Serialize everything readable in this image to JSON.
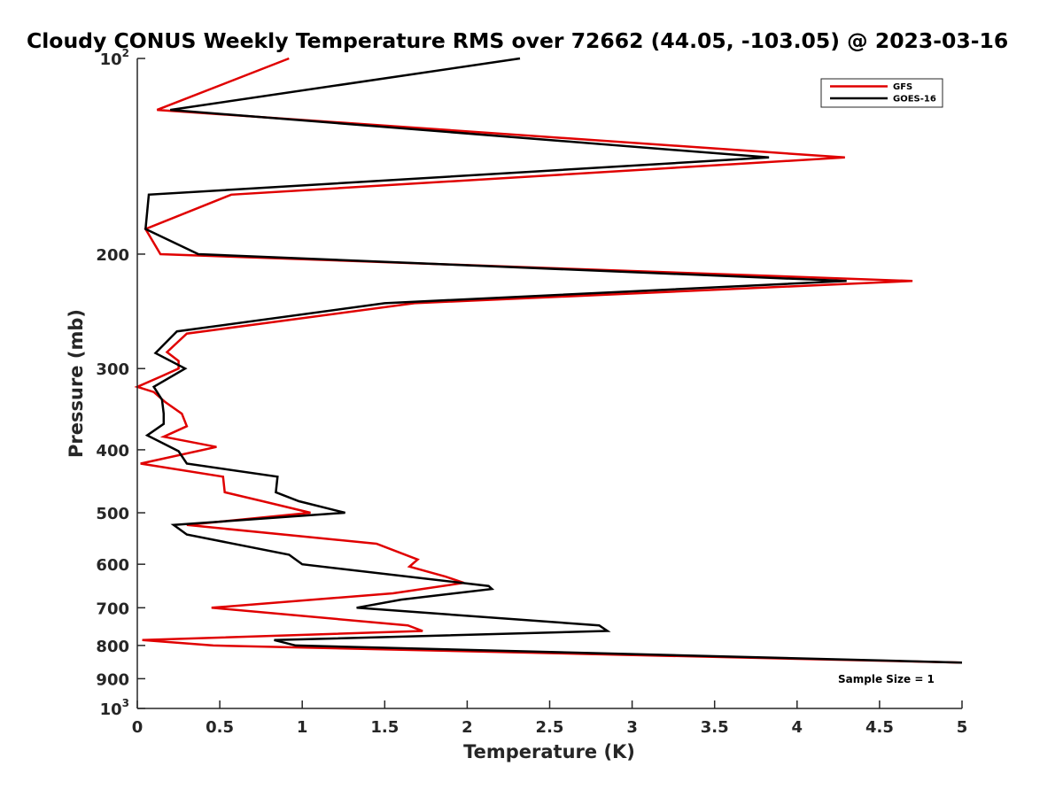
{
  "chart_data": {
    "type": "line",
    "title": "Cloudy CONUS Weekly Temperature RMS over 72662 (44.05, -103.05) @ 2023-03-16",
    "xlabel": "Temperature (K)",
    "ylabel": "Pressure (mb)",
    "xlim": [
      0,
      5
    ],
    "ylim": [
      100,
      1000
    ],
    "yscale": "log",
    "y_reversed": true,
    "grid": false,
    "legend_position": "top-right",
    "x_ticks": [
      0,
      0.5,
      1,
      1.5,
      2,
      2.5,
      3,
      3.5,
      4,
      4.5,
      5
    ],
    "x_tick_labels": [
      "0",
      "0.5",
      "1",
      "1.5",
      "2",
      "2.5",
      "3",
      "3.5",
      "4",
      "4.5",
      "5"
    ],
    "y_ticks": [
      100,
      200,
      300,
      400,
      500,
      600,
      700,
      800,
      900,
      1000
    ],
    "y_tick_labels": [
      {
        "base": "10",
        "sup": "2"
      },
      {
        "base": "200",
        "sup": ""
      },
      {
        "base": "300",
        "sup": ""
      },
      {
        "base": "400",
        "sup": ""
      },
      {
        "base": "500",
        "sup": ""
      },
      {
        "base": "600",
        "sup": ""
      },
      {
        "base": "700",
        "sup": ""
      },
      {
        "base": "800",
        "sup": ""
      },
      {
        "base": "900",
        "sup": ""
      },
      {
        "base": "10",
        "sup": "3"
      }
    ],
    "annotation": "Sample Size = 1",
    "series": [
      {
        "name": "GFS",
        "color": "#e00000",
        "points": [
          [
            0.92,
            100
          ],
          [
            0.12,
            120
          ],
          [
            4.29,
            142
          ],
          [
            0.57,
            162
          ],
          [
            0.05,
            183
          ],
          [
            0.14,
            200
          ],
          [
            4.7,
            220
          ],
          [
            1.68,
            238
          ],
          [
            0.3,
            265
          ],
          [
            0.18,
            283
          ],
          [
            0.25,
            292
          ],
          [
            0.25,
            300
          ],
          [
            0.15,
            308
          ],
          [
            0.0,
            320
          ],
          [
            0.1,
            326
          ],
          [
            0.17,
            338
          ],
          [
            0.27,
            352
          ],
          [
            0.3,
            368
          ],
          [
            0.16,
            382
          ],
          [
            0.48,
            396
          ],
          [
            0.02,
            420
          ],
          [
            0.52,
            440
          ],
          [
            0.53,
            465
          ],
          [
            0.76,
            480
          ],
          [
            1.05,
            500
          ],
          [
            0.3,
            522
          ],
          [
            1.45,
            558
          ],
          [
            1.7,
            590
          ],
          [
            1.65,
            605
          ],
          [
            1.87,
            627
          ],
          [
            1.98,
            641
          ],
          [
            1.55,
            665
          ],
          [
            0.45,
            700
          ],
          [
            1.64,
            745
          ],
          [
            1.73,
            760
          ],
          [
            0.03,
            785
          ],
          [
            0.46,
            800
          ],
          [
            5.0,
            850
          ]
        ]
      },
      {
        "name": "GOES-16",
        "color": "#000000",
        "points": [
          [
            2.32,
            100
          ],
          [
            0.2,
            120
          ],
          [
            3.83,
            142
          ],
          [
            0.07,
            162
          ],
          [
            0.05,
            183
          ],
          [
            0.37,
            200
          ],
          [
            4.3,
            220
          ],
          [
            1.5,
            238
          ],
          [
            0.24,
            263
          ],
          [
            0.11,
            284
          ],
          [
            0.29,
            300
          ],
          [
            0.1,
            320
          ],
          [
            0.15,
            335
          ],
          [
            0.16,
            352
          ],
          [
            0.16,
            365
          ],
          [
            0.06,
            380
          ],
          [
            0.25,
            402
          ],
          [
            0.3,
            420
          ],
          [
            0.85,
            440
          ],
          [
            0.84,
            465
          ],
          [
            0.98,
            480
          ],
          [
            1.26,
            500
          ],
          [
            0.22,
            522
          ],
          [
            0.3,
            540
          ],
          [
            0.92,
            580
          ],
          [
            1.0,
            600
          ],
          [
            2.13,
            648
          ],
          [
            2.15,
            655
          ],
          [
            1.6,
            680
          ],
          [
            1.33,
            700
          ],
          [
            2.8,
            745
          ],
          [
            2.85,
            760
          ],
          [
            0.83,
            785
          ],
          [
            0.96,
            800
          ],
          [
            5.0,
            850
          ]
        ]
      }
    ]
  }
}
